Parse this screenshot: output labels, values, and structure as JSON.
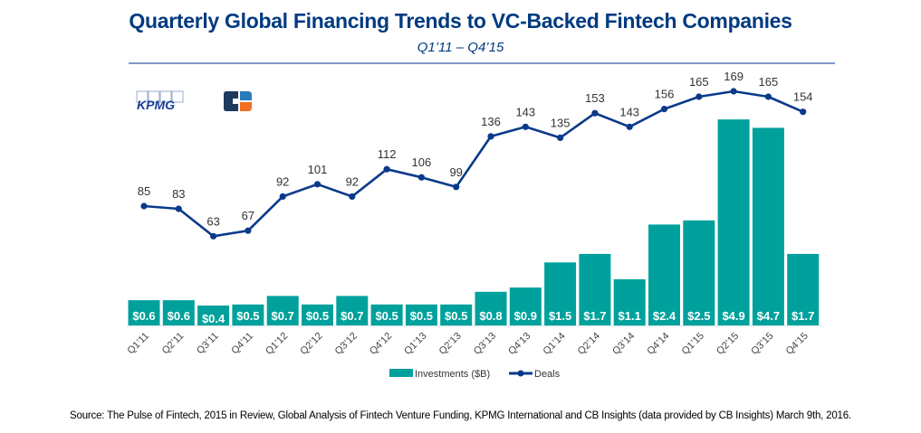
{
  "header": {
    "title": "Quarterly Global Financing Trends to VC-Backed Fintech Companies",
    "subtitle": "Q1’11 – Q4’15"
  },
  "logos": {
    "kpmg": "KPMG",
    "cb": "CB Insights logo"
  },
  "colors": {
    "title": "#003a80",
    "bars": "#00a19c",
    "line": "#0a3a8a",
    "rule": "#7f99c8"
  },
  "chart_data": {
    "type": "bar+line",
    "title": "Quarterly Global Financing Trends to VC-Backed Fintech Companies",
    "subtitle": "Q1’11 – Q4’15",
    "xlabel": "",
    "ylabel": "",
    "grid": false,
    "legend_position": "bottom-center",
    "categories": [
      "Q1’11",
      "Q2’11",
      "Q3’11",
      "Q4’11",
      "Q1’12",
      "Q2’12",
      "Q3’12",
      "Q4’12",
      "Q1’13",
      "Q2’13",
      "Q3’13",
      "Q4’13",
      "Q1’14",
      "Q2’14",
      "Q3’14",
      "Q4’14",
      "Q1’15",
      "Q2’15",
      "Q3’15",
      "Q4’15"
    ],
    "series": [
      {
        "name": "Investments ($B)",
        "type": "bar",
        "values": [
          0.6,
          0.6,
          0.4,
          0.5,
          0.7,
          0.5,
          0.7,
          0.5,
          0.5,
          0.5,
          0.8,
          0.9,
          1.5,
          1.7,
          1.1,
          2.4,
          2.5,
          4.9,
          4.7,
          1.7
        ],
        "labels": [
          "$0.6",
          "$0.6",
          "$0.4",
          "$0.5",
          "$0.7",
          "$0.5",
          "$0.7",
          "$0.5",
          "$0.5",
          "$0.5",
          "$0.8",
          "$0.9",
          "$1.5",
          "$1.7",
          "$1.1",
          "$2.4",
          "$2.5",
          "$4.9",
          "$4.7",
          "$1.7"
        ]
      },
      {
        "name": "Deals",
        "type": "line",
        "values": [
          85,
          83,
          63,
          67,
          92,
          101,
          92,
          112,
          106,
          99,
          136,
          143,
          135,
          153,
          143,
          156,
          165,
          169,
          165,
          154
        ]
      }
    ],
    "legend": [
      "Investments ($B)",
      "Deals"
    ]
  },
  "footer": {
    "source": "Source: The Pulse of Fintech, 2015 in Review, Global Analysis of Fintech Venture Funding, KPMG International and CB Insights (data provided by CB Insights) March 9th, 2016."
  }
}
